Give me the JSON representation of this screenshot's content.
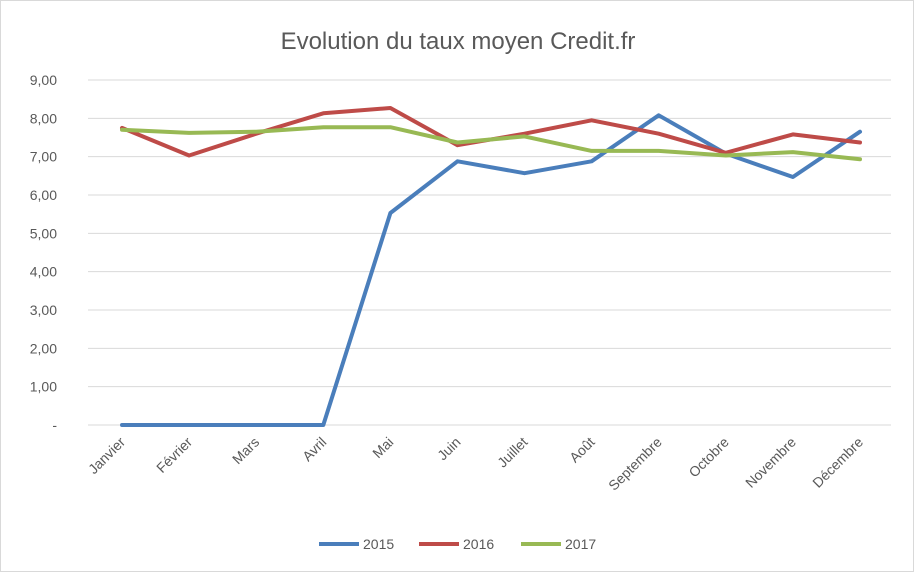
{
  "chart_data": {
    "type": "line",
    "title": "Evolution du taux moyen Credit.fr",
    "xlabel": "",
    "ylabel": "",
    "categories": [
      "Janvier",
      "Février",
      "Mars",
      "Avril",
      "Mai",
      "Juin",
      "Juillet",
      "Août",
      "Septembre",
      "Octobre",
      "Novembre",
      "Décembre"
    ],
    "y_tick_labels": [
      "-",
      "1,00",
      "2,00",
      "3,00",
      "4,00",
      "5,00",
      "6,00",
      "7,00",
      "8,00",
      "9,00"
    ],
    "ylim": [
      0,
      9
    ],
    "grid": true,
    "legend_position": "bottom",
    "series": [
      {
        "name": "2015",
        "color": "#4a7ebb",
        "values": [
          0,
          0,
          0,
          0,
          5.53,
          6.88,
          6.57,
          6.88,
          8.08,
          7.08,
          6.47,
          7.65
        ]
      },
      {
        "name": "2016",
        "color": "#be4b48",
        "values": [
          7.75,
          7.03,
          7.6,
          8.13,
          8.27,
          7.3,
          7.6,
          7.95,
          7.6,
          7.1,
          7.58,
          7.37
        ]
      },
      {
        "name": "2017",
        "color": "#98b954",
        "values": [
          7.7,
          7.62,
          7.65,
          7.77,
          7.77,
          7.37,
          7.53,
          7.15,
          7.15,
          7.03,
          7.12,
          6.93
        ]
      }
    ]
  }
}
